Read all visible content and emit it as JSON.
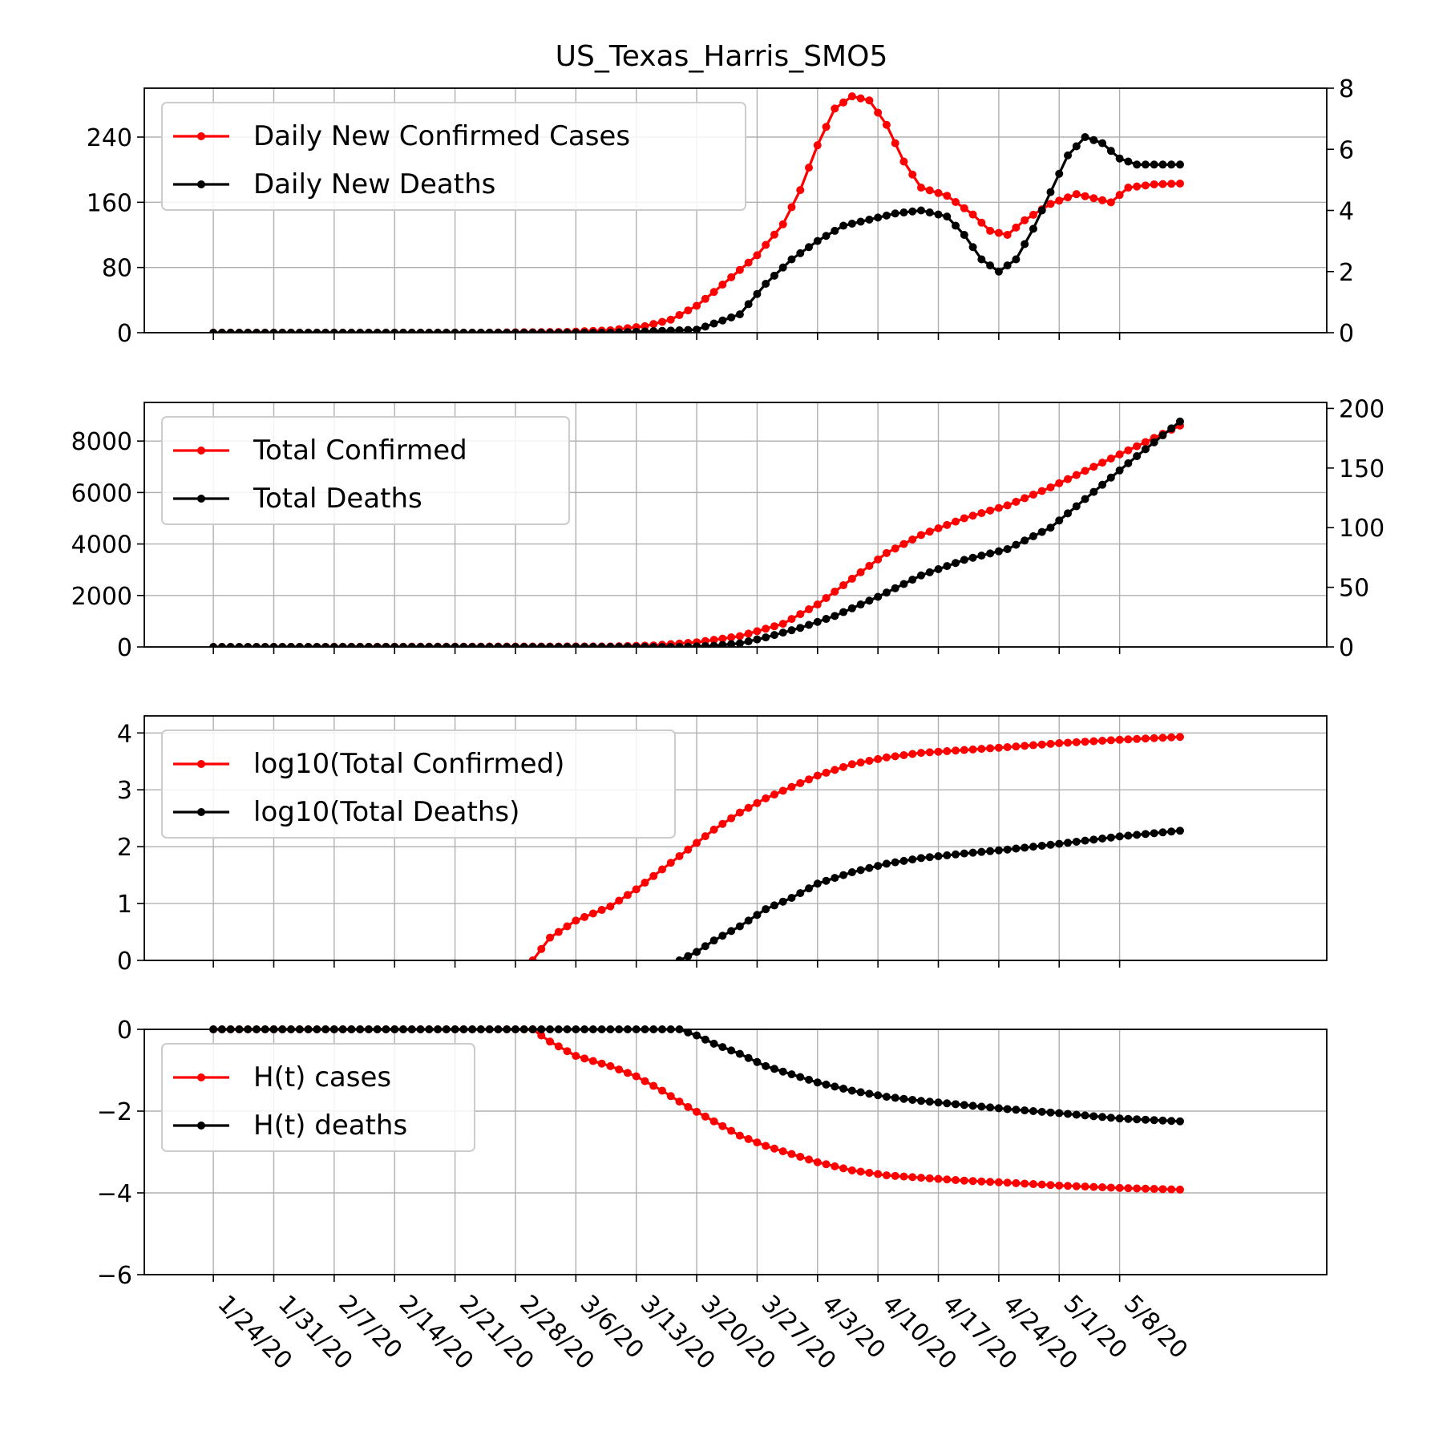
{
  "title": "US_Texas_Harris_SMO5",
  "colors": {
    "red": "#ff0000",
    "black": "#000000",
    "grid": "#b0b0b0"
  },
  "x_tick_labels": [
    "1/24/20",
    "1/31/20",
    "2/7/20",
    "2/14/20",
    "2/21/20",
    "2/28/20",
    "3/6/20",
    "3/13/20",
    "3/20/20",
    "3/27/20",
    "4/3/20",
    "4/10/20",
    "4/17/20",
    "4/24/20",
    "5/1/20",
    "5/8/20"
  ],
  "chart_data": [
    {
      "type": "line",
      "x_range": [
        "1/24/20",
        "5/11/20"
      ],
      "ylim": [
        0,
        300
      ],
      "ylim_right": [
        0,
        8
      ],
      "y_ticks": [
        "0",
        "80",
        "160",
        "240"
      ],
      "y_ticks_right": [
        "0",
        "2",
        "4",
        "6",
        "8"
      ],
      "grid": true,
      "legend_position": "top-left",
      "series": [
        {
          "name": "Daily New Confirmed Cases",
          "axis": "left",
          "points": [
            [
              "1/24/20",
              0
            ],
            [
              "2/24/20",
              0
            ],
            [
              "2/28/20",
              0.5
            ],
            [
              "3/5/20",
              1
            ],
            [
              "3/10/20",
              3
            ],
            [
              "3/14/20",
              8
            ],
            [
              "3/17/20",
              16
            ],
            [
              "3/20/20",
              33
            ],
            [
              "3/22/20",
              50
            ],
            [
              "3/24/20",
              68
            ],
            [
              "3/27/20",
              95
            ],
            [
              "3/30/20",
              133
            ],
            [
              "4/1/20",
              175
            ],
            [
              "4/3/20",
              230
            ],
            [
              "4/5/20",
              275
            ],
            [
              "4/7/20",
              290
            ],
            [
              "4/9/20",
              285
            ],
            [
              "4/11/20",
              255
            ],
            [
              "4/13/20",
              210
            ],
            [
              "4/15/20",
              178
            ],
            [
              "4/18/20",
              168
            ],
            [
              "4/21/20",
              145
            ],
            [
              "4/23/20",
              125
            ],
            [
              "4/25/20",
              120
            ],
            [
              "4/27/20",
              138
            ],
            [
              "4/30/20",
              158
            ],
            [
              "5/3/20",
              170
            ],
            [
              "5/5/20",
              165
            ],
            [
              "5/7/20",
              160
            ],
            [
              "5/9/20",
              178
            ],
            [
              "5/12/20",
              182
            ],
            [
              "5/15/20",
              183
            ]
          ]
        },
        {
          "name": "Daily New Deaths",
          "axis": "right",
          "points": [
            [
              "1/24/20",
              0
            ],
            [
              "3/10/20",
              0
            ],
            [
              "3/20/20",
              0.1
            ],
            [
              "3/22/20",
              0.3
            ],
            [
              "3/25/20",
              0.6
            ],
            [
              "3/28/20",
              1.6
            ],
            [
              "3/31/20",
              2.4
            ],
            [
              "4/3/20",
              3.0
            ],
            [
              "4/6/20",
              3.5
            ],
            [
              "4/9/20",
              3.7
            ],
            [
              "4/12/20",
              3.9
            ],
            [
              "4/15/20",
              4.0
            ],
            [
              "4/18/20",
              3.8
            ],
            [
              "4/20/20",
              3.2
            ],
            [
              "4/22/20",
              2.4
            ],
            [
              "4/24/20",
              2.0
            ],
            [
              "4/26/20",
              2.4
            ],
            [
              "4/28/20",
              3.4
            ],
            [
              "4/30/20",
              4.6
            ],
            [
              "5/2/20",
              5.8
            ],
            [
              "5/4/20",
              6.4
            ],
            [
              "5/6/20",
              6.2
            ],
            [
              "5/8/20",
              5.7
            ],
            [
              "5/10/20",
              5.5
            ],
            [
              "5/12/20",
              5.5
            ],
            [
              "5/15/20",
              5.5
            ]
          ]
        }
      ]
    },
    {
      "type": "line",
      "x_range": [
        "1/24/20",
        "5/11/20"
      ],
      "ylim": [
        0,
        9500
      ],
      "ylim_right": [
        0,
        205
      ],
      "y_ticks": [
        "0",
        "2000",
        "4000",
        "6000",
        "8000"
      ],
      "y_ticks_right": [
        "0",
        "50",
        "100",
        "150",
        "200"
      ],
      "grid": true,
      "legend_position": "top-left",
      "series": [
        {
          "name": "Total Confirmed",
          "axis": "left",
          "points": [
            [
              "1/24/20",
              0
            ],
            [
              "3/10/20",
              20
            ],
            [
              "3/15/20",
              60
            ],
            [
              "3/20/20",
              180
            ],
            [
              "3/25/20",
              420
            ],
            [
              "3/30/20",
              900
            ],
            [
              "4/3/20",
              1650
            ],
            [
              "4/7/20",
              2650
            ],
            [
              "4/11/20",
              3650
            ],
            [
              "4/15/20",
              4350
            ],
            [
              "4/20/20",
              5000
            ],
            [
              "4/25/20",
              5500
            ],
            [
              "4/30/20",
              6200
            ],
            [
              "5/5/20",
              7000
            ],
            [
              "5/10/20",
              7800
            ],
            [
              "5/15/20",
              8600
            ]
          ]
        },
        {
          "name": "Total Deaths",
          "axis": "right",
          "points": [
            [
              "1/24/20",
              0
            ],
            [
              "3/18/20",
              0
            ],
            [
              "3/22/20",
              1
            ],
            [
              "3/25/20",
              3
            ],
            [
              "3/28/20",
              8
            ],
            [
              "4/1/20",
              16
            ],
            [
              "4/5/20",
              26
            ],
            [
              "4/10/20",
              42
            ],
            [
              "4/15/20",
              60
            ],
            [
              "4/20/20",
              73
            ],
            [
              "4/25/20",
              82
            ],
            [
              "4/30/20",
              100
            ],
            [
              "5/5/20",
              130
            ],
            [
              "5/10/20",
              160
            ],
            [
              "5/15/20",
              189
            ]
          ]
        }
      ]
    },
    {
      "type": "line",
      "x_range": [
        "1/24/20",
        "5/11/20"
      ],
      "ylim": [
        0,
        4.3
      ],
      "y_ticks": [
        "0",
        "1",
        "2",
        "3",
        "4"
      ],
      "grid": true,
      "legend_position": "top-left",
      "series": [
        {
          "name": "log10(Total Confirmed)",
          "axis": "left",
          "points": [
            [
              "3/1/20",
              0
            ],
            [
              "3/3/20",
              0.4
            ],
            [
              "3/6/20",
              0.7
            ],
            [
              "3/10/20",
              0.95
            ],
            [
              "3/13/20",
              1.25
            ],
            [
              "3/16/20",
              1.6
            ],
            [
              "3/19/20",
              1.95
            ],
            [
              "3/22/20",
              2.3
            ],
            [
              "3/25/20",
              2.6
            ],
            [
              "3/28/20",
              2.85
            ],
            [
              "3/31/20",
              3.05
            ],
            [
              "4/3/20",
              3.25
            ],
            [
              "4/7/20",
              3.45
            ],
            [
              "4/11/20",
              3.57
            ],
            [
              "4/15/20",
              3.65
            ],
            [
              "4/20/20",
              3.7
            ],
            [
              "4/25/20",
              3.75
            ],
            [
              "5/1/20",
              3.82
            ],
            [
              "5/8/20",
              3.88
            ],
            [
              "5/15/20",
              3.93
            ]
          ]
        },
        {
          "name": "log10(Total Deaths)",
          "axis": "left",
          "points": [
            [
              "3/18/20",
              0
            ],
            [
              "3/20/20",
              0.15
            ],
            [
              "3/22/20",
              0.35
            ],
            [
              "3/25/20",
              0.6
            ],
            [
              "3/28/20",
              0.9
            ],
            [
              "3/31/20",
              1.1
            ],
            [
              "4/3/20",
              1.35
            ],
            [
              "4/7/20",
              1.55
            ],
            [
              "4/11/20",
              1.7
            ],
            [
              "4/15/20",
              1.8
            ],
            [
              "4/20/20",
              1.88
            ],
            [
              "4/25/20",
              1.95
            ],
            [
              "5/1/20",
              2.05
            ],
            [
              "5/8/20",
              2.18
            ],
            [
              "5/15/20",
              2.28
            ]
          ]
        }
      ]
    },
    {
      "type": "line",
      "x_range": [
        "1/24/20",
        "5/11/20"
      ],
      "ylim": [
        -6,
        0
      ],
      "y_ticks": [
        "−6",
        "−4",
        "−2",
        "0"
      ],
      "grid": true,
      "legend_position": "top-left",
      "series": [
        {
          "name": "H(t) cases",
          "axis": "left",
          "points": [
            [
              "1/24/20",
              0
            ],
            [
              "3/1/20",
              0
            ],
            [
              "3/3/20",
              -0.3
            ],
            [
              "3/6/20",
              -0.65
            ],
            [
              "3/10/20",
              -0.9
            ],
            [
              "3/13/20",
              -1.15
            ],
            [
              "3/16/20",
              -1.5
            ],
            [
              "3/19/20",
              -1.9
            ],
            [
              "3/22/20",
              -2.25
            ],
            [
              "3/25/20",
              -2.6
            ],
            [
              "3/28/20",
              -2.85
            ],
            [
              "3/31/20",
              -3.05
            ],
            [
              "4/3/20",
              -3.25
            ],
            [
              "4/7/20",
              -3.45
            ],
            [
              "4/11/20",
              -3.57
            ],
            [
              "4/15/20",
              -3.63
            ],
            [
              "4/20/20",
              -3.7
            ],
            [
              "4/25/20",
              -3.75
            ],
            [
              "5/1/20",
              -3.82
            ],
            [
              "5/8/20",
              -3.88
            ],
            [
              "5/15/20",
              -3.92
            ]
          ]
        },
        {
          "name": "H(t) deaths",
          "axis": "left",
          "points": [
            [
              "1/24/20",
              0
            ],
            [
              "3/10/20",
              0
            ],
            [
              "3/18/20",
              0
            ],
            [
              "3/20/20",
              -0.15
            ],
            [
              "3/22/20",
              -0.35
            ],
            [
              "3/25/20",
              -0.6
            ],
            [
              "3/28/20",
              -0.9
            ],
            [
              "3/31/20",
              -1.1
            ],
            [
              "4/3/20",
              -1.3
            ],
            [
              "4/7/20",
              -1.5
            ],
            [
              "4/11/20",
              -1.65
            ],
            [
              "4/15/20",
              -1.75
            ],
            [
              "4/20/20",
              -1.85
            ],
            [
              "4/25/20",
              -1.95
            ],
            [
              "5/1/20",
              -2.05
            ],
            [
              "5/8/20",
              -2.18
            ],
            [
              "5/15/20",
              -2.25
            ]
          ]
        }
      ]
    }
  ]
}
